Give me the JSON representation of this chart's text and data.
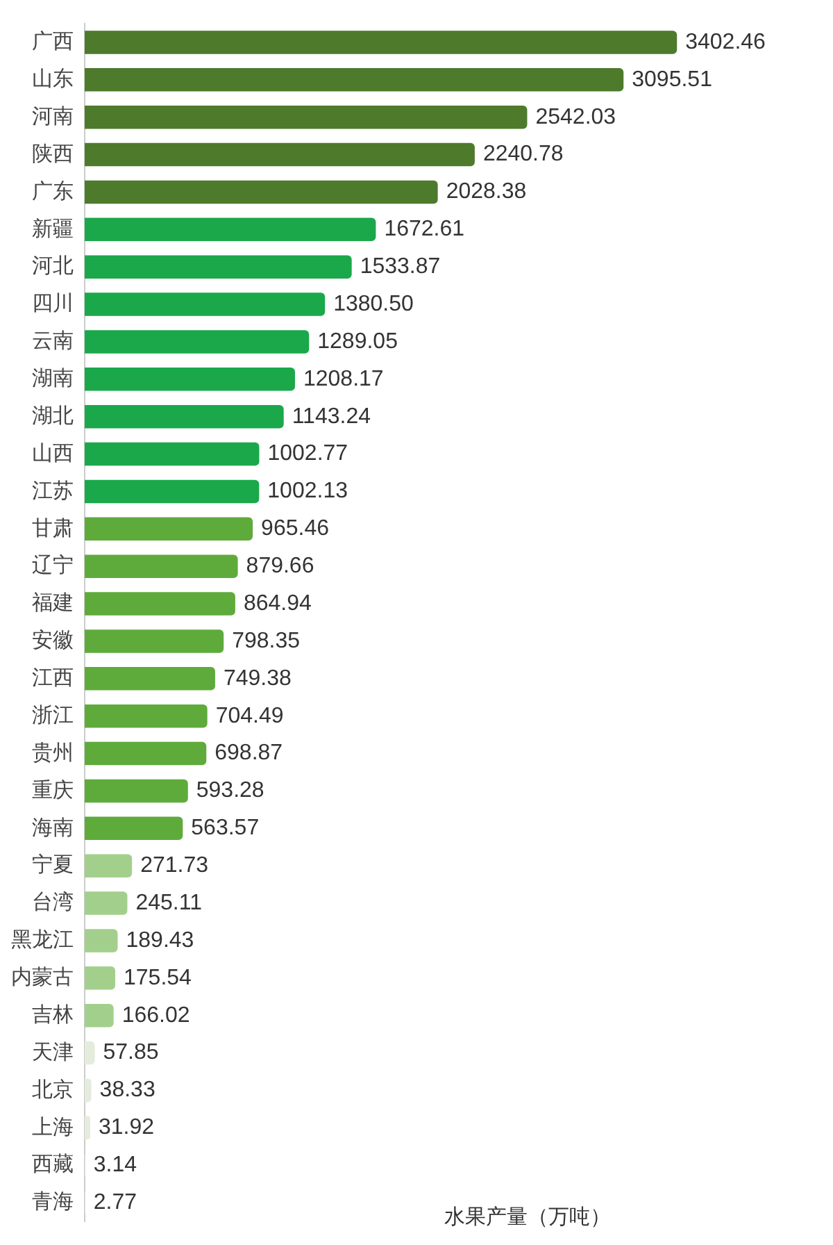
{
  "chart_data": {
    "type": "bar",
    "orientation": "horizontal",
    "data_labels": true,
    "categories": [
      "广西",
      "山东",
      "河南",
      "陕西",
      "广东",
      "新疆",
      "河北",
      "四川",
      "云南",
      "湖南",
      "湖北",
      "山西",
      "江苏",
      "甘肃",
      "辽宁",
      "福建",
      "安徽",
      "江西",
      "浙江",
      "贵州",
      "重庆",
      "海南",
      "宁夏",
      "台湾",
      "黑龙江",
      "内蒙古",
      "吉林",
      "天津",
      "北京",
      "上海",
      "西藏",
      "青海"
    ],
    "values": [
      3402.46,
      3095.51,
      2542.03,
      2240.78,
      2028.38,
      1672.61,
      1533.87,
      1380.5,
      1289.05,
      1208.17,
      1143.24,
      1002.77,
      1002.13,
      965.46,
      879.66,
      864.94,
      798.35,
      749.38,
      704.49,
      698.87,
      593.28,
      563.57,
      271.73,
      245.11,
      189.43,
      175.54,
      166.02,
      57.85,
      38.33,
      31.92,
      3.14,
      2.77
    ],
    "value_labels": [
      "3402.46",
      "3095.51",
      "2542.03",
      "2240.78",
      "2028.38",
      "1672.61",
      "1533.87",
      "1380.50",
      "1289.05",
      "1208.17",
      "1143.24",
      "1002.77",
      "1002.13",
      "965.46",
      "879.66",
      "864.94",
      "798.35",
      "749.38",
      "704.49",
      "698.87",
      "593.28",
      "563.57",
      "271.73",
      "245.11",
      "189.43",
      "175.54",
      "166.02",
      "57.85",
      "38.33",
      "31.92",
      "3.14",
      "2.77"
    ],
    "colors": [
      "#4e7a2c",
      "#4e7a2c",
      "#4e7a2c",
      "#4e7a2c",
      "#4e7a2c",
      "#1aa84a",
      "#1aa84a",
      "#1aa84a",
      "#1aa84a",
      "#1aa84a",
      "#1aa84a",
      "#1aa84a",
      "#1aa84a",
      "#5eab3c",
      "#5eab3c",
      "#5eab3c",
      "#5eab3c",
      "#5eab3c",
      "#5eab3c",
      "#5eab3c",
      "#5eab3c",
      "#5eab3c",
      "#a2d08c",
      "#a2d08c",
      "#a2d08c",
      "#a2d08c",
      "#a2d08c",
      "#e4ecdc",
      "#e4ecdc",
      "#e4ecdc",
      "#e4ecdc",
      "#e4ecdc"
    ],
    "annotations": [
      "水果产量（万吨）"
    ]
  }
}
